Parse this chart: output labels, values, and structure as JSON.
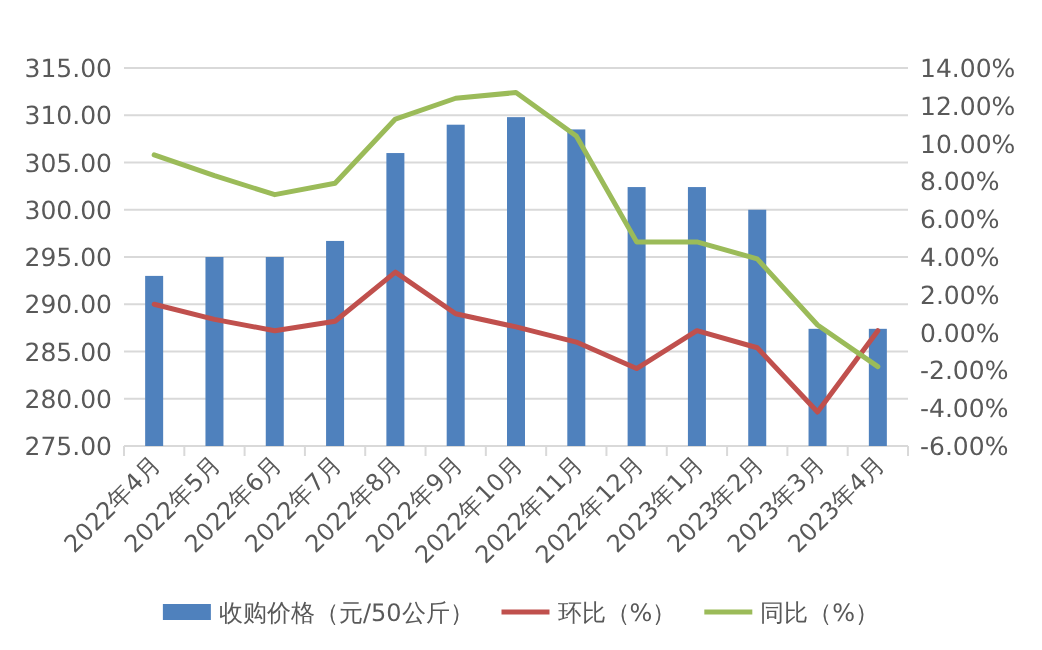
{
  "chart_data": {
    "type": "bar",
    "categories": [
      "2022年4月",
      "2022年5月",
      "2022年6月",
      "2022年7月",
      "2022年8月",
      "2022年9月",
      "2022年10月",
      "2022年11月",
      "2022年12月",
      "2023年1月",
      "2023年2月",
      "2023年3月",
      "2023年4月"
    ],
    "series": [
      {
        "name": "收购价格（元/50公斤）",
        "color": "#4f81bd",
        "values": [
          293,
          295,
          295,
          296.7,
          306,
          309,
          309.8,
          308.5,
          302.4,
          302.4,
          300,
          287.4,
          287.4
        ]
      },
      {
        "name": "环比（%）",
        "type": "line",
        "axis": "y2",
        "color": "#c0504d",
        "values": [
          1.5,
          0.7,
          0.1,
          0.6,
          3.2,
          1.0,
          0.3,
          -0.5,
          -1.9,
          0.1,
          -0.8,
          -4.2,
          0.1
        ]
      },
      {
        "name": "同比（%）",
        "type": "line",
        "axis": "y2",
        "color": "#9bbb59",
        "values": [
          9.4,
          8.3,
          7.3,
          7.9,
          11.3,
          12.4,
          12.7,
          10.4,
          4.8,
          4.8,
          3.9,
          0.4,
          -1.8
        ]
      }
    ],
    "ylim": [
      275,
      315
    ],
    "yticks": [
      {
        "value": 275,
        "label": "275.00"
      },
      {
        "value": 280,
        "label": "280.00"
      },
      {
        "value": 285,
        "label": "285.00"
      },
      {
        "value": 290,
        "label": "290.00"
      },
      {
        "value": 295,
        "label": "295.00"
      },
      {
        "value": 300,
        "label": "300.00"
      },
      {
        "value": 305,
        "label": "305.00"
      },
      {
        "value": 310,
        "label": "310.00"
      },
      {
        "value": 315,
        "label": "315.00"
      }
    ],
    "y2lim": [
      -6,
      14
    ],
    "y2ticks": [
      {
        "value": -6,
        "label": "-6.00%"
      },
      {
        "value": -4,
        "label": "-4.00%"
      },
      {
        "value": -2,
        "label": "-2.00%"
      },
      {
        "value": 0,
        "label": "0.00%"
      },
      {
        "value": 2,
        "label": "2.00%"
      },
      {
        "value": 4,
        "label": "4.00%"
      },
      {
        "value": 6,
        "label": "6.00%"
      },
      {
        "value": 8,
        "label": "8.00%"
      },
      {
        "value": 10,
        "label": "10.00%"
      },
      {
        "value": 12,
        "label": "12.00%"
      },
      {
        "value": 14,
        "label": "14.00%"
      }
    ],
    "grid": "y",
    "legend": "bottom",
    "marker": "none",
    "line_style": "solid"
  }
}
